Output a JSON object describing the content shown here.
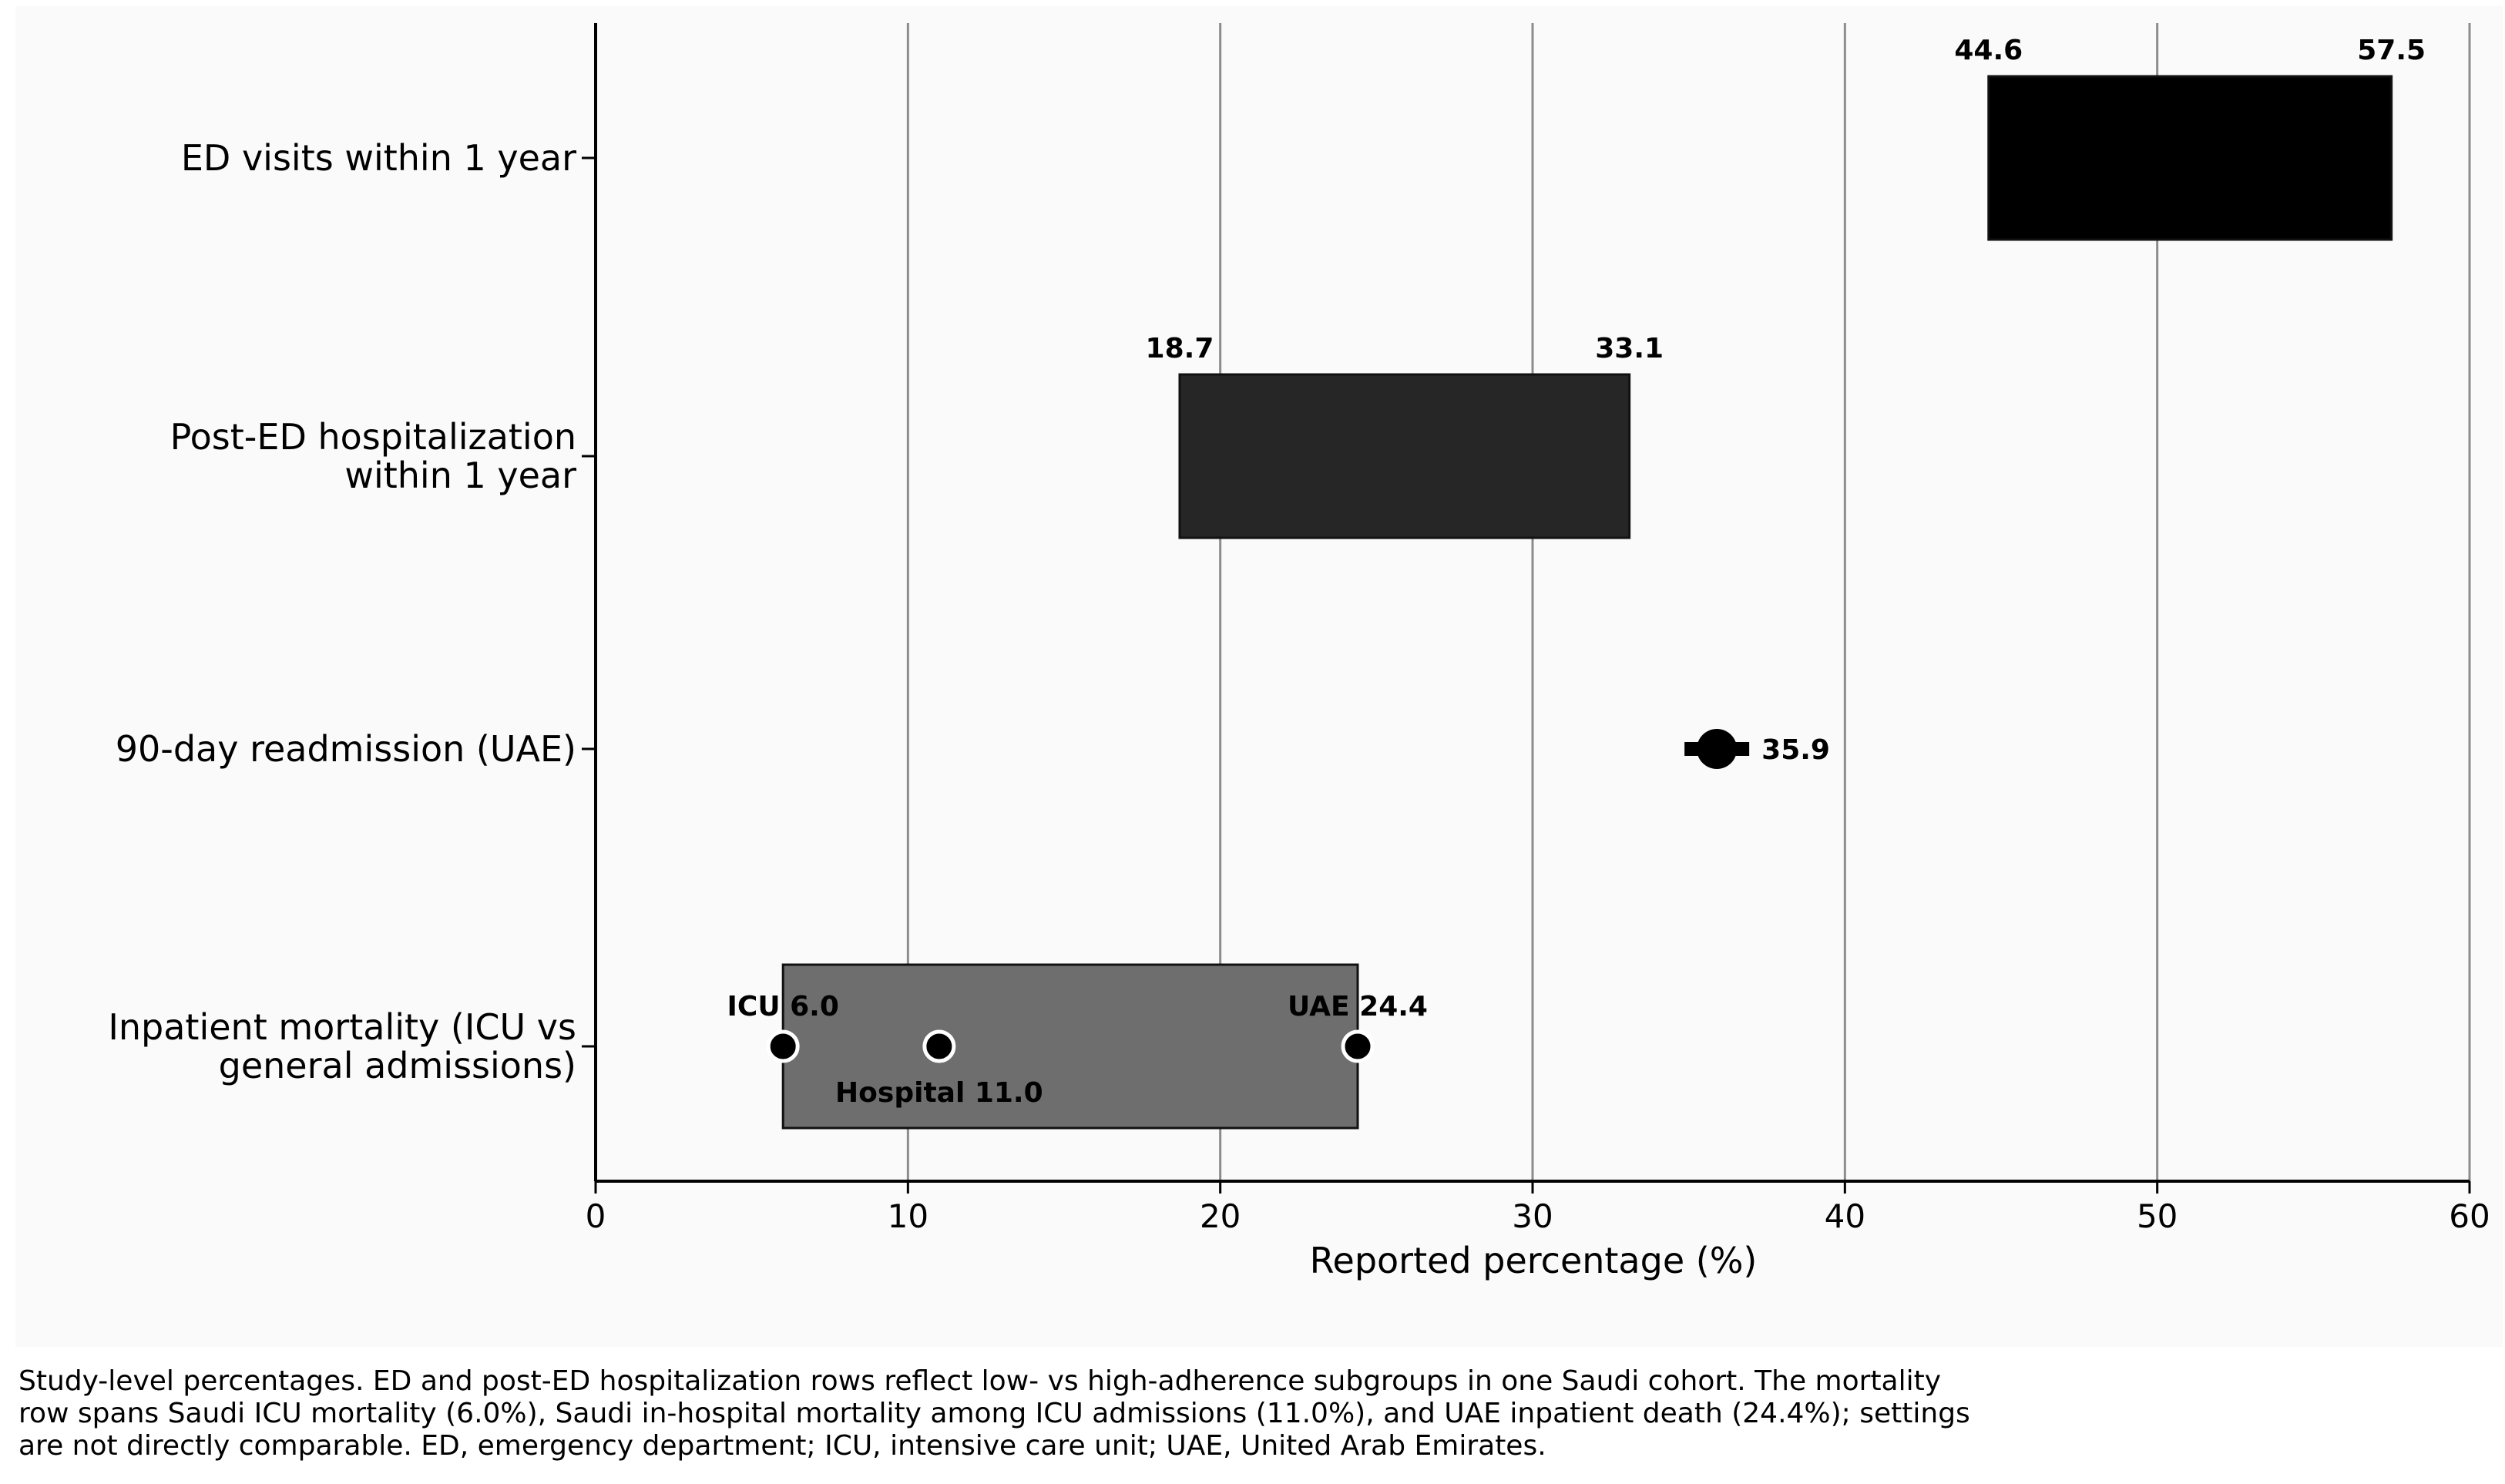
{
  "chart_data": {
    "type": "range",
    "xlabel": "Reported percentage (%)",
    "xlim": [
      0,
      60
    ],
    "xticks": [
      0,
      10,
      20,
      30,
      40,
      50,
      60
    ],
    "grid": "vertical",
    "rows": [
      {
        "label_lines": [
          "ED visits within 1 year"
        ],
        "kind": "range",
        "low": 44.6,
        "high": 57.5,
        "low_label": "44.6",
        "high_label": "57.5",
        "color": "#000000"
      },
      {
        "label_lines": [
          "Post-ED hospitalization",
          "within 1 year"
        ],
        "kind": "range",
        "low": 18.7,
        "high": 33.1,
        "low_label": "18.7",
        "high_label": "33.1",
        "color": "#262626"
      },
      {
        "label_lines": [
          "90-day readmission (UAE)"
        ],
        "kind": "point",
        "value": 35.9,
        "value_label": "35.9",
        "color": "#000000"
      },
      {
        "label_lines": [
          "Inpatient mortality (ICU vs",
          "general admissions)"
        ],
        "kind": "range_points",
        "low": 6.0,
        "high": 24.4,
        "color": "#6e6e6e",
        "points": [
          {
            "value": 6.0,
            "label": "ICU 6.0",
            "label_pos": "above"
          },
          {
            "value": 11.0,
            "label": "Hospital 11.0",
            "label_pos": "below"
          },
          {
            "value": 24.4,
            "label": "UAE 24.4",
            "label_pos": "above"
          }
        ]
      }
    ]
  },
  "caption": "Study-level percentages. ED and post-ED hospitalization rows reflect low- vs high-adherence subgroups in one Saudi cohort. The mortality row spans Saudi ICU mortality (6.0%), Saudi in-hospital mortality among ICU admissions (11.0%), and UAE inpatient death (24.4%); settings are not directly comparable. ED, emergency department; ICU, intensive care unit; UAE, United Arab Emirates."
}
